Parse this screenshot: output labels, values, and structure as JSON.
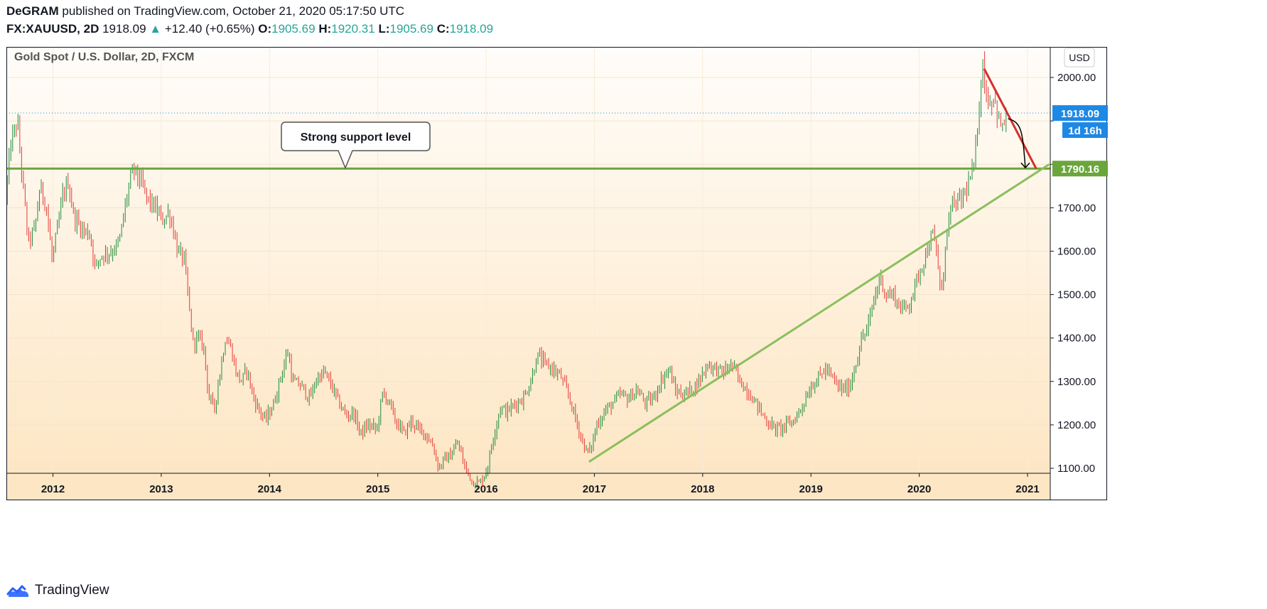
{
  "header": {
    "author": "DeGRAM",
    "published_text": "published on TradingView.com, October 21, 2020 05:17:50 UTC",
    "symbol": "FX:XAUUSD, 2D",
    "last": "1918.09",
    "change": "+12.40 (+0.65%)",
    "o_label": "O:",
    "o_value": "1905.69",
    "h_label": "H:",
    "h_value": "1920.31",
    "l_label": "L:",
    "l_value": "1905.69",
    "c_label": "C:",
    "c_value": "1918.09"
  },
  "colors": {
    "up": "#26a69a",
    "candle_up": "#1e8c3a",
    "candle_down": "#e53935",
    "support": "#6aa63a",
    "trend": "#8bbf5c",
    "resistance": "#d32f2f",
    "price_badge": "#1e88e5",
    "bg_top": "#fffdfa",
    "bg_bottom": "#fde6c4"
  },
  "chart_data": {
    "type": "candlestick",
    "title": "Gold Spot / U.S. Dollar, 2D, FXCM",
    "currency": "USD",
    "ylim": [
      1070,
      2100
    ],
    "y_ticks": [
      2000,
      1900,
      1800,
      1700,
      1600,
      1500,
      1400,
      1300,
      1200,
      1100
    ],
    "y_tick_labels": [
      "2000.00",
      "",
      "",
      "1700.00",
      "1600.00",
      "1500.00",
      "1400.00",
      "1300.00",
      "1200.00",
      "1100.00"
    ],
    "x_range": [
      2011.57,
      2021.21
    ],
    "x_ticks": [
      2012,
      2013,
      2014,
      2015,
      2016,
      2017,
      2018,
      2019,
      2020,
      2021
    ],
    "x_tick_labels": [
      "2012",
      "2013",
      "2014",
      "2015",
      "2016",
      "2017",
      "2018",
      "2019",
      "2020",
      "2021"
    ],
    "last_price": 1918.09,
    "last_price_label": "1918.09",
    "countdown_label": "1d 16h",
    "support_level": 1790.16,
    "support_label": "1790.16",
    "annotation": "Strong support level",
    "trendline": {
      "from": [
        2016.95,
        1115
      ],
      "to": [
        2021.2,
        1800
      ]
    },
    "resistance_line": {
      "from": [
        2020.6,
        2020
      ],
      "to": [
        2021.08,
        1790
      ]
    },
    "projection_arrow": {
      "from": [
        2020.82,
        1905
      ],
      "to": [
        2020.98,
        1792
      ]
    },
    "price_path": [
      [
        2011.57,
        1720
      ],
      [
        2011.62,
        1850
      ],
      [
        2011.68,
        1900
      ],
      [
        2011.72,
        1780
      ],
      [
        2011.78,
        1620
      ],
      [
        2011.84,
        1650
      ],
      [
        2011.89,
        1750
      ],
      [
        2011.95,
        1700
      ],
      [
        2012.0,
        1580
      ],
      [
        2012.05,
        1650
      ],
      [
        2012.1,
        1730
      ],
      [
        2012.15,
        1760
      ],
      [
        2012.2,
        1680
      ],
      [
        2012.28,
        1650
      ],
      [
        2012.35,
        1640
      ],
      [
        2012.4,
        1560
      ],
      [
        2012.45,
        1590
      ],
      [
        2012.55,
        1600
      ],
      [
        2012.62,
        1620
      ],
      [
        2012.7,
        1740
      ],
      [
        2012.75,
        1790
      ],
      [
        2012.82,
        1760
      ],
      [
        2012.88,
        1720
      ],
      [
        2012.95,
        1700
      ],
      [
        2013.02,
        1670
      ],
      [
        2013.08,
        1690
      ],
      [
        2013.12,
        1650
      ],
      [
        2013.16,
        1600
      ],
      [
        2013.22,
        1580
      ],
      [
        2013.27,
        1460
      ],
      [
        2013.3,
        1390
      ],
      [
        2013.35,
        1400
      ],
      [
        2013.4,
        1380
      ],
      [
        2013.45,
        1260
      ],
      [
        2013.5,
        1240
      ],
      [
        2013.55,
        1320
      ],
      [
        2013.6,
        1400
      ],
      [
        2013.65,
        1380
      ],
      [
        2013.7,
        1320
      ],
      [
        2013.75,
        1300
      ],
      [
        2013.8,
        1330
      ],
      [
        2013.85,
        1270
      ],
      [
        2013.9,
        1240
      ],
      [
        2013.97,
        1210
      ],
      [
        2014.05,
        1250
      ],
      [
        2014.12,
        1320
      ],
      [
        2014.18,
        1370
      ],
      [
        2014.22,
        1300
      ],
      [
        2014.3,
        1290
      ],
      [
        2014.38,
        1260
      ],
      [
        2014.45,
        1310
      ],
      [
        2014.52,
        1320
      ],
      [
        2014.58,
        1290
      ],
      [
        2014.65,
        1250
      ],
      [
        2014.72,
        1220
      ],
      [
        2014.78,
        1230
      ],
      [
        2014.85,
        1180
      ],
      [
        2014.92,
        1200
      ],
      [
        2015.0,
        1190
      ],
      [
        2015.05,
        1270
      ],
      [
        2015.1,
        1260
      ],
      [
        2015.17,
        1210
      ],
      [
        2015.25,
        1180
      ],
      [
        2015.32,
        1210
      ],
      [
        2015.38,
        1190
      ],
      [
        2015.45,
        1180
      ],
      [
        2015.52,
        1150
      ],
      [
        2015.57,
        1100
      ],
      [
        2015.62,
        1120
      ],
      [
        2015.68,
        1130
      ],
      [
        2015.75,
        1160
      ],
      [
        2015.8,
        1110
      ],
      [
        2015.88,
        1070
      ],
      [
        2015.95,
        1065
      ],
      [
        2016.02,
        1100
      ],
      [
        2016.08,
        1180
      ],
      [
        2016.14,
        1240
      ],
      [
        2016.2,
        1230
      ],
      [
        2016.28,
        1250
      ],
      [
        2016.35,
        1260
      ],
      [
        2016.42,
        1300
      ],
      [
        2016.48,
        1360
      ],
      [
        2016.55,
        1340
      ],
      [
        2016.62,
        1330
      ],
      [
        2016.7,
        1310
      ],
      [
        2016.78,
        1260
      ],
      [
        2016.85,
        1200
      ],
      [
        2016.93,
        1140
      ],
      [
        2016.97,
        1140
      ],
      [
        2017.03,
        1200
      ],
      [
        2017.1,
        1230
      ],
      [
        2017.18,
        1250
      ],
      [
        2017.25,
        1270
      ],
      [
        2017.32,
        1260
      ],
      [
        2017.4,
        1280
      ],
      [
        2017.48,
        1250
      ],
      [
        2017.55,
        1260
      ],
      [
        2017.62,
        1300
      ],
      [
        2017.7,
        1330
      ],
      [
        2017.75,
        1280
      ],
      [
        2017.82,
        1270
      ],
      [
        2017.9,
        1280
      ],
      [
        2017.97,
        1300
      ],
      [
        2018.05,
        1340
      ],
      [
        2018.12,
        1330
      ],
      [
        2018.2,
        1320
      ],
      [
        2018.28,
        1340
      ],
      [
        2018.35,
        1300
      ],
      [
        2018.42,
        1280
      ],
      [
        2018.5,
        1250
      ],
      [
        2018.57,
        1220
      ],
      [
        2018.63,
        1200
      ],
      [
        2018.7,
        1190
      ],
      [
        2018.78,
        1200
      ],
      [
        2018.85,
        1210
      ],
      [
        2018.92,
        1240
      ],
      [
        2019.0,
        1285
      ],
      [
        2019.08,
        1310
      ],
      [
        2019.15,
        1330
      ],
      [
        2019.22,
        1300
      ],
      [
        2019.3,
        1280
      ],
      [
        2019.37,
        1290
      ],
      [
        2019.43,
        1350
      ],
      [
        2019.48,
        1400
      ],
      [
        2019.53,
        1420
      ],
      [
        2019.6,
        1500
      ],
      [
        2019.65,
        1540
      ],
      [
        2019.7,
        1500
      ],
      [
        2019.77,
        1500
      ],
      [
        2019.83,
        1470
      ],
      [
        2019.9,
        1470
      ],
      [
        2019.97,
        1520
      ],
      [
        2020.02,
        1560
      ],
      [
        2020.08,
        1600
      ],
      [
        2020.13,
        1640
      ],
      [
        2020.18,
        1580
      ],
      [
        2020.21,
        1480
      ],
      [
        2020.25,
        1620
      ],
      [
        2020.3,
        1700
      ],
      [
        2020.35,
        1710
      ],
      [
        2020.4,
        1720
      ],
      [
        2020.47,
        1760
      ],
      [
        2020.52,
        1800
      ],
      [
        2020.55,
        1900
      ],
      [
        2020.59,
        2040
      ],
      [
        2020.62,
        1970
      ],
      [
        2020.66,
        1940
      ],
      [
        2020.7,
        1960
      ],
      [
        2020.74,
        1900
      ],
      [
        2020.78,
        1880
      ],
      [
        2020.81,
        1918
      ]
    ]
  },
  "footer": {
    "brand": "TradingView"
  }
}
